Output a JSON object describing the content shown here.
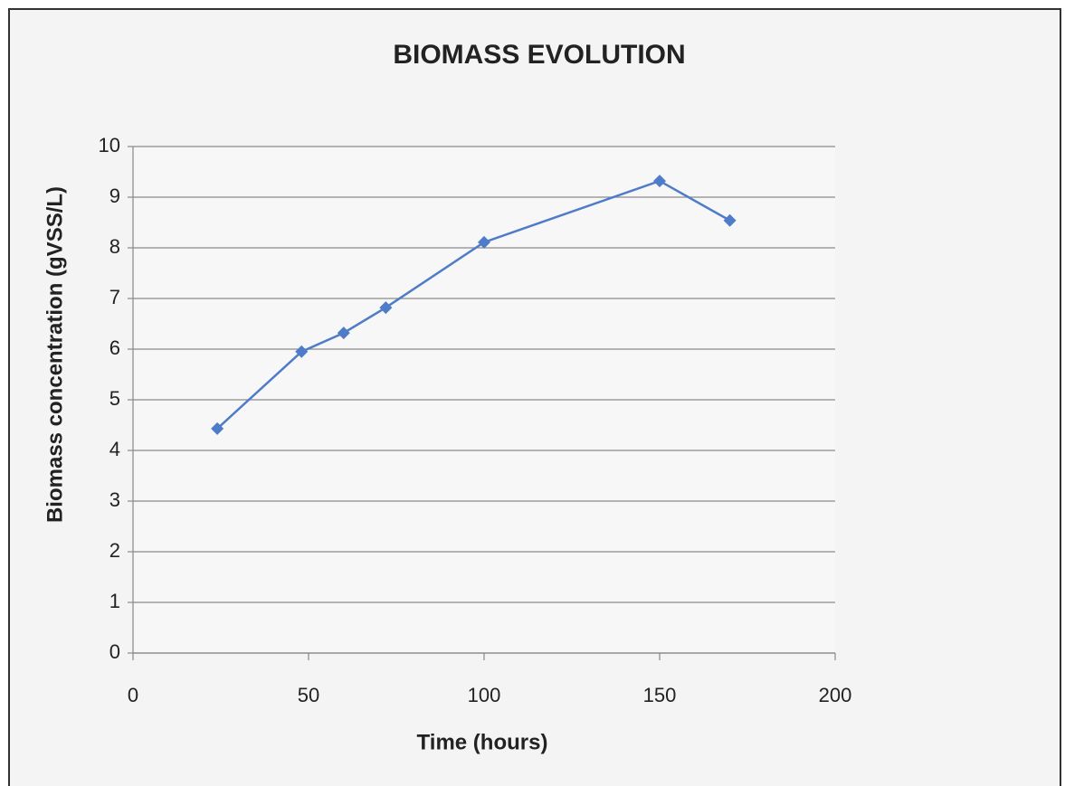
{
  "chart_data": {
    "type": "line",
    "title": "BIOMASS EVOLUTION",
    "x_label": "Time (hours)",
    "y_label": "Biomass concentration (gVSS/L)",
    "x": [
      24,
      48,
      60,
      72,
      100,
      150,
      170
    ],
    "values": [
      4.43,
      5.95,
      6.32,
      6.82,
      8.11,
      9.32,
      8.54
    ],
    "color": "#4f7cc8",
    "marker": "diamond",
    "xlim": [
      0,
      200
    ],
    "xticks": [
      0,
      50,
      100,
      150,
      200
    ],
    "ylim": [
      0,
      10
    ],
    "yticks": [
      0,
      1,
      2,
      3,
      4,
      5,
      6,
      7,
      8,
      9,
      10
    ],
    "grid": true
  }
}
